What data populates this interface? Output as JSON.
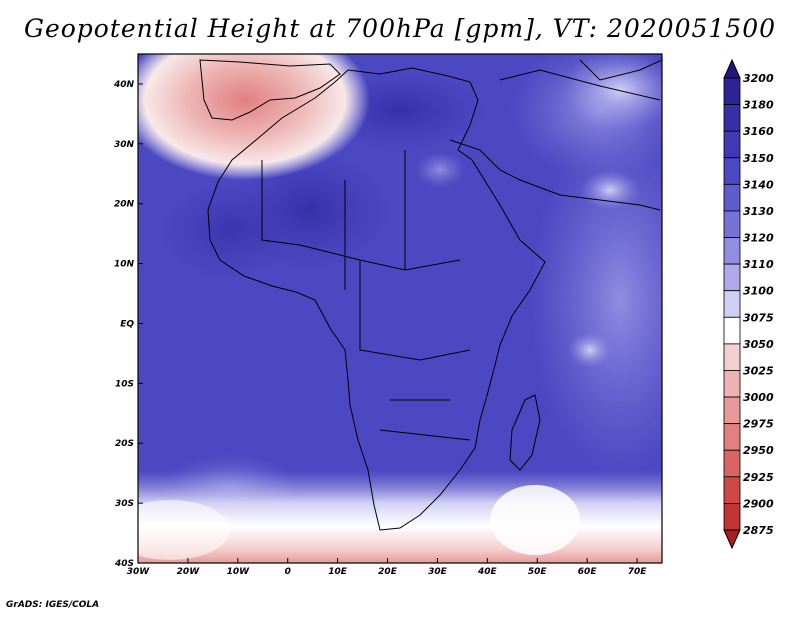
{
  "title": "Geopotential Height at 700hPa [gpm], VT: 2020051500",
  "credit": "GrADS: IGES/COLA",
  "map": {
    "lat_labels": [
      "40N",
      "30N",
      "20N",
      "10N",
      "EQ",
      "10S",
      "20S",
      "30S",
      "40S"
    ],
    "lon_labels": [
      "30W",
      "20W",
      "10W",
      "0",
      "10E",
      "20E",
      "30E",
      "40E",
      "50E",
      "60E",
      "70E"
    ],
    "lat_range": [
      -40,
      45
    ],
    "lon_range": [
      -30,
      75
    ]
  },
  "colorbar": {
    "levels": [
      "3200",
      "3180",
      "3160",
      "3150",
      "3140",
      "3130",
      "3120",
      "3110",
      "3100",
      "3075",
      "3050",
      "3025",
      "3000",
      "2975",
      "2950",
      "2925",
      "2900",
      "2875"
    ],
    "colors": [
      "#25157f",
      "#2d2396",
      "#3630a8",
      "#4038b5",
      "#4c48c2",
      "#5f5cce",
      "#7673d8",
      "#908de2",
      "#aeabec",
      "#d0cff4",
      "#ffffff",
      "#f4cfcf",
      "#eeb4b4",
      "#e89a9a",
      "#e08080",
      "#d86464",
      "#cf4848",
      "#c23434",
      "#a81e1e"
    ]
  }
}
